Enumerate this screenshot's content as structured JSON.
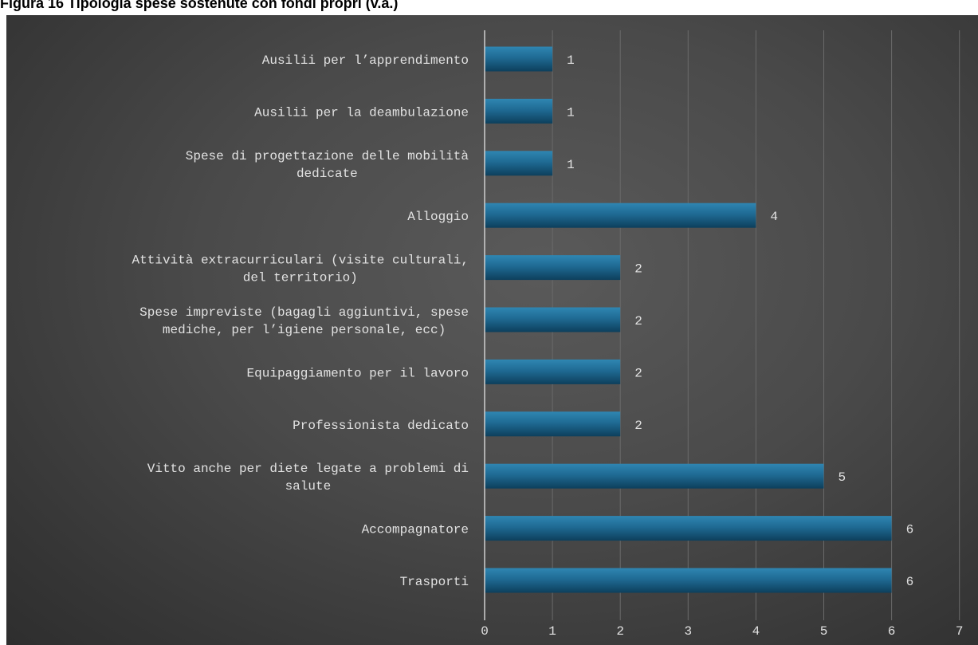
{
  "figure": {
    "title": "Figura 16 Tipologia spese sostenute con fondi propri (v.a.)"
  },
  "chart_data": {
    "type": "bar",
    "orientation": "horizontal",
    "categories": [
      [
        "Ausilii per l’apprendimento"
      ],
      [
        "Ausilii per la deambulazione"
      ],
      [
        "Spese di progettazione delle mobilità",
        "dedicate"
      ],
      [
        "Alloggio"
      ],
      [
        "Attività extracurriculari (visite culturali,",
        "del territorio)"
      ],
      [
        "Spese impreviste (bagagli aggiuntivi, spese",
        "mediche, per l’igiene personale, ecc)"
      ],
      [
        "Equipaggiamento per il lavoro"
      ],
      [
        "Professionista dedicato"
      ],
      [
        "Vitto anche per diete legate a problemi di",
        "salute"
      ],
      [
        "Accompagnatore"
      ],
      [
        "Trasporti"
      ]
    ],
    "values": [
      1,
      1,
      1,
      4,
      2,
      2,
      2,
      2,
      5,
      6,
      6
    ],
    "xticks": [
      0,
      1,
      2,
      3,
      4,
      5,
      6,
      7
    ],
    "xlim": [
      0,
      7
    ],
    "title": "",
    "xlabel": "",
    "ylabel": "",
    "grid": "vertical",
    "legend": "none",
    "colors": {
      "bar": "#1f6a93",
      "bar_highlight": "#2f86b2",
      "bar_shadow": "#0d3f5c",
      "text": "#e2e2e2",
      "axis": "#cfcfcf",
      "grid": "#6a6a6a"
    }
  }
}
